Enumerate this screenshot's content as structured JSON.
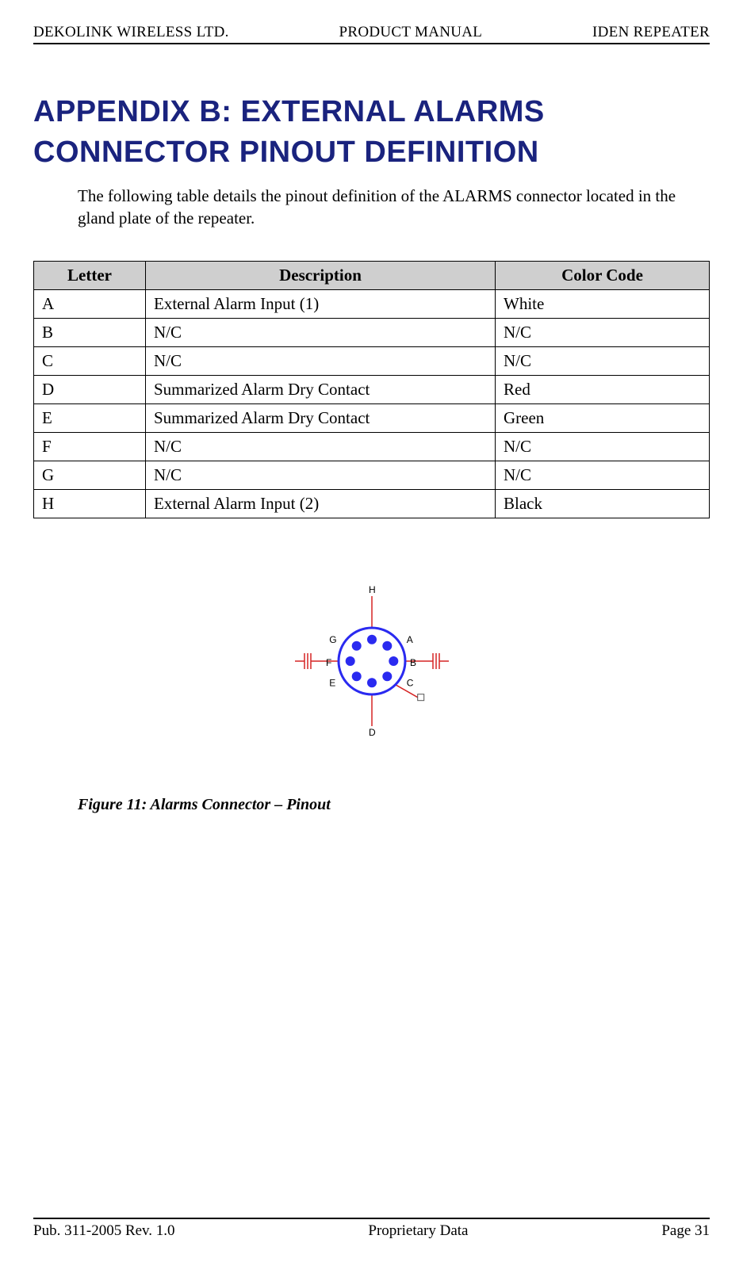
{
  "header": {
    "left": "DEKOLINK WIRELESS LTD.",
    "center": "PRODUCT MANUAL",
    "right": "IDEN REPEATER"
  },
  "title_line1": "APPENDIX B: EXTERNAL ALARMS",
  "title_line2": "CONNECTOR PINOUT DEFINITION",
  "intro": "The following table details the pinout definition of the ALARMS connector located in the gland plate of the repeater.",
  "table": {
    "headers": [
      "Letter",
      "Description",
      "Color Code"
    ],
    "rows": [
      [
        "A",
        "External Alarm Input (1)",
        "White"
      ],
      [
        "B",
        "N/C",
        "N/C"
      ],
      [
        "C",
        "N/C",
        "N/C"
      ],
      [
        "D",
        "Summarized Alarm Dry Contact",
        "Red"
      ],
      [
        "E",
        "Summarized Alarm Dry Contact",
        "Green"
      ],
      [
        "F",
        "N/C",
        "N/C"
      ],
      [
        "G",
        "N/C",
        "N/C"
      ],
      [
        "H",
        "External Alarm Input (2)",
        "Black"
      ]
    ]
  },
  "connector": {
    "outer_color": "#2a2af0",
    "outer_radius": 42,
    "pin_radius": 6,
    "pin_fill": "#2a2af0",
    "wire_colors": {
      "A": "#d62424",
      "B": "#d62424",
      "C": "#d62424",
      "D": "#d62424",
      "E": "#d62424",
      "F": "#d62424",
      "G": "#d62424",
      "H": "#d62424"
    },
    "ground_color": "#d62424",
    "square_stroke": "#555555",
    "labels": [
      "A",
      "B",
      "C",
      "D",
      "E",
      "F",
      "G",
      "H"
    ],
    "label_font": "11px Arial"
  },
  "figure_caption": "Figure 11: Alarms Connector – Pinout",
  "footer": {
    "left": "Pub. 311-2005 Rev. 1.0",
    "center": "Proprietary Data",
    "right": "Page 31"
  }
}
